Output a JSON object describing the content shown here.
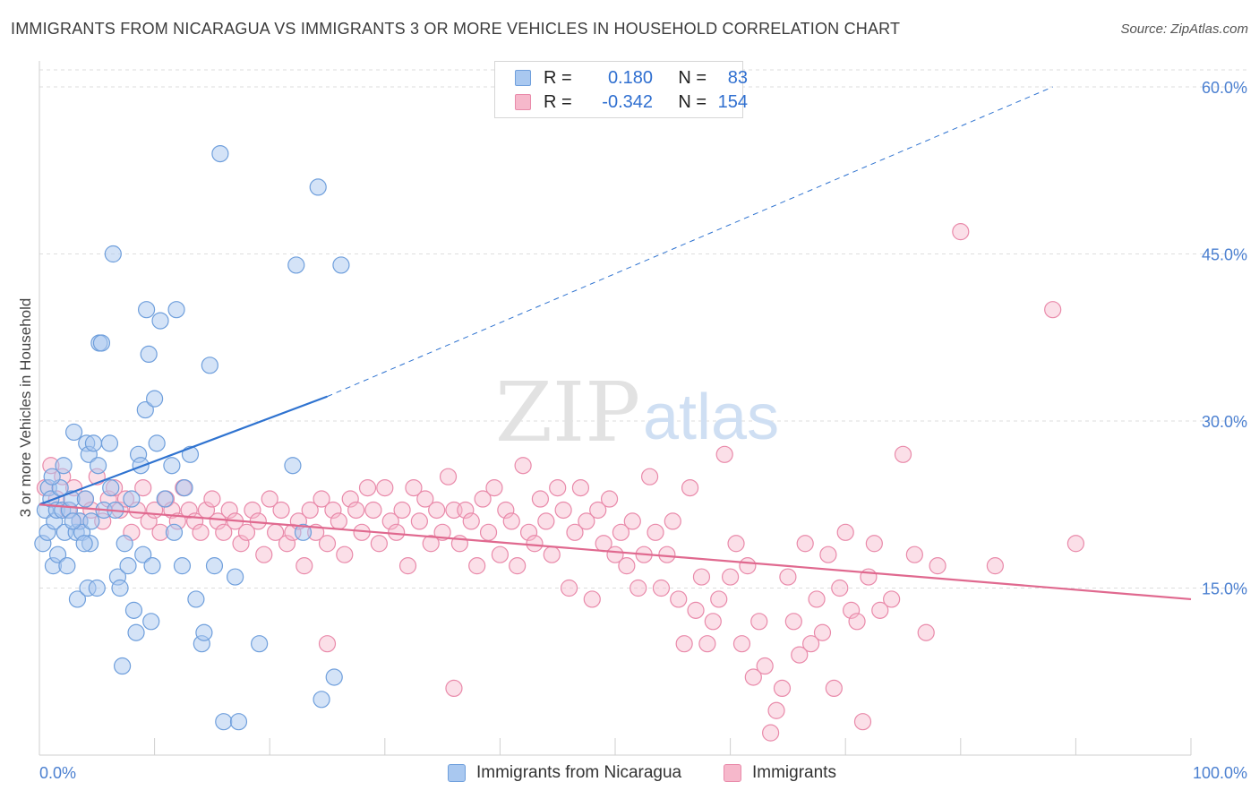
{
  "title": "IMMIGRANTS FROM NICARAGUA VS IMMIGRANTS 3 OR MORE VEHICLES IN HOUSEHOLD CORRELATION CHART",
  "source": "Source: ZipAtlas.com",
  "watermark": {
    "zip": "ZIP",
    "atlas": "atlas"
  },
  "legend": {
    "rows": [
      {
        "r_label": "R =",
        "r_value": "0.180",
        "n_label": "N =",
        "n_value": "83"
      },
      {
        "r_label": "R =",
        "r_value": "-0.342",
        "n_label": "N =",
        "n_value": "154"
      }
    ]
  },
  "colors": {
    "blue_fill": "#a9c8f0",
    "blue_stroke": "#6f9fdc",
    "blue_line": "#2f73d0",
    "pink_fill": "#f6b8cb",
    "pink_stroke": "#e98aaa",
    "pink_line": "#e0698f",
    "tick_text": "#4a7fd0",
    "grid": "#dedede"
  },
  "chart_data": {
    "type": "scatter",
    "title": "IMMIGRANTS FROM NICARAGUA VS IMMIGRANTS 3 OR MORE VEHICLES IN HOUSEHOLD CORRELATION CHART",
    "xlabel": "",
    "ylabel": "3 or more Vehicles in Household",
    "xlim": [
      0,
      100
    ],
    "ylim": [
      0,
      60
    ],
    "x_tick_labels": [
      "0.0%",
      "100.0%"
    ],
    "y_ticks": [
      15,
      30,
      45,
      60
    ],
    "y_tick_labels": [
      "15.0%",
      "30.0%",
      "45.0%",
      "60.0%"
    ],
    "grid": true,
    "legend_position": "bottom",
    "series": [
      {
        "name": "Immigrants from Nicaragua",
        "color": "#a9c8f0",
        "trend": {
          "x0": 0,
          "y0": 22.5,
          "x1": 25,
          "y1": 32.2,
          "dashed_to_x": 88,
          "dashed_to_y": 60
        },
        "points": [
          [
            0.3,
            19
          ],
          [
            0.5,
            22
          ],
          [
            0.7,
            20
          ],
          [
            0.8,
            24
          ],
          [
            1,
            23
          ],
          [
            1.2,
            17
          ],
          [
            1.3,
            21
          ],
          [
            1.5,
            22
          ],
          [
            1.6,
            18
          ],
          [
            1.8,
            24
          ],
          [
            2,
            22
          ],
          [
            2.1,
            26
          ],
          [
            2.2,
            20
          ],
          [
            2.4,
            17
          ],
          [
            2.6,
            22
          ],
          [
            2.8,
            23
          ],
          [
            3,
            29
          ],
          [
            3.2,
            20
          ],
          [
            3.3,
            14
          ],
          [
            3.5,
            21
          ],
          [
            3.7,
            20
          ],
          [
            4,
            23
          ],
          [
            4.1,
            28
          ],
          [
            4.2,
            15
          ],
          [
            4.3,
            27
          ],
          [
            4.4,
            19
          ],
          [
            4.5,
            21
          ],
          [
            4.7,
            28
          ],
          [
            5,
            15
          ],
          [
            5.1,
            26
          ],
          [
            5.2,
            37
          ],
          [
            5.4,
            37
          ],
          [
            5.6,
            22
          ],
          [
            6.1,
            28
          ],
          [
            6.2,
            24
          ],
          [
            6.4,
            45
          ],
          [
            6.8,
            16
          ],
          [
            7,
            15
          ],
          [
            7.2,
            8
          ],
          [
            7.4,
            19
          ],
          [
            7.7,
            17
          ],
          [
            8,
            23
          ],
          [
            8.2,
            13
          ],
          [
            8.4,
            11
          ],
          [
            8.6,
            27
          ],
          [
            8.8,
            26
          ],
          [
            9,
            18
          ],
          [
            9.2,
            31
          ],
          [
            9.3,
            40
          ],
          [
            9.5,
            36
          ],
          [
            9.7,
            12
          ],
          [
            9.8,
            17
          ],
          [
            10,
            32
          ],
          [
            10.2,
            28
          ],
          [
            10.5,
            39
          ],
          [
            10.9,
            23
          ],
          [
            11.5,
            26
          ],
          [
            11.7,
            20
          ],
          [
            11.9,
            40
          ],
          [
            12.4,
            17
          ],
          [
            12.6,
            24
          ],
          [
            13.1,
            27
          ],
          [
            13.6,
            14
          ],
          [
            14.1,
            10
          ],
          [
            14.3,
            11
          ],
          [
            14.8,
            35
          ],
          [
            15.2,
            17
          ],
          [
            15.7,
            54
          ],
          [
            16,
            3
          ],
          [
            17,
            16
          ],
          [
            17.3,
            3
          ],
          [
            19.1,
            10
          ],
          [
            22,
            26
          ],
          [
            22.3,
            44
          ],
          [
            22.9,
            20
          ],
          [
            24.2,
            51
          ],
          [
            24.5,
            5
          ],
          [
            25.6,
            7
          ],
          [
            26.2,
            44
          ],
          [
            1.1,
            25
          ],
          [
            2.9,
            21
          ],
          [
            3.9,
            19
          ],
          [
            6.6,
            22
          ]
        ]
      },
      {
        "name": "Immigrants",
        "color": "#f6b8cb",
        "trend": {
          "x0": 0,
          "y0": 22.5,
          "x1": 100,
          "y1": 14.0
        },
        "points": [
          [
            0.5,
            24
          ],
          [
            1,
            26
          ],
          [
            1.5,
            23
          ],
          [
            2,
            25
          ],
          [
            2.5,
            22
          ],
          [
            3,
            24
          ],
          [
            3.5,
            21
          ],
          [
            4,
            23
          ],
          [
            4.5,
            22
          ],
          [
            5,
            25
          ],
          [
            5.5,
            21
          ],
          [
            6,
            23
          ],
          [
            6.5,
            24
          ],
          [
            7,
            22
          ],
          [
            7.5,
            23
          ],
          [
            8,
            20
          ],
          [
            8.5,
            22
          ],
          [
            9,
            24
          ],
          [
            9.5,
            21
          ],
          [
            10,
            22
          ],
          [
            10.5,
            20
          ],
          [
            11,
            23
          ],
          [
            11.5,
            22
          ],
          [
            12,
            21
          ],
          [
            12.5,
            24
          ],
          [
            13,
            22
          ],
          [
            13.5,
            21
          ],
          [
            14,
            20
          ],
          [
            14.5,
            22
          ],
          [
            15,
            23
          ],
          [
            15.5,
            21
          ],
          [
            16,
            20
          ],
          [
            16.5,
            22
          ],
          [
            17,
            21
          ],
          [
            17.5,
            19
          ],
          [
            18,
            20
          ],
          [
            18.5,
            22
          ],
          [
            19,
            21
          ],
          [
            19.5,
            18
          ],
          [
            20,
            23
          ],
          [
            20.5,
            20
          ],
          [
            21,
            22
          ],
          [
            21.5,
            19
          ],
          [
            22,
            20
          ],
          [
            22.5,
            21
          ],
          [
            23,
            17
          ],
          [
            23.5,
            22
          ],
          [
            24,
            20
          ],
          [
            24.5,
            23
          ],
          [
            25,
            19
          ],
          [
            25.5,
            22
          ],
          [
            26,
            21
          ],
          [
            26.5,
            18
          ],
          [
            27,
            23
          ],
          [
            27.5,
            22
          ],
          [
            28,
            20
          ],
          [
            28.5,
            24
          ],
          [
            29,
            22
          ],
          [
            29.5,
            19
          ],
          [
            30,
            24
          ],
          [
            30.5,
            21
          ],
          [
            31,
            20
          ],
          [
            31.5,
            22
          ],
          [
            32,
            17
          ],
          [
            32.5,
            24
          ],
          [
            33,
            21
          ],
          [
            33.5,
            23
          ],
          [
            34,
            19
          ],
          [
            34.5,
            22
          ],
          [
            35,
            20
          ],
          [
            35.5,
            25
          ],
          [
            36,
            22
          ],
          [
            36.5,
            19
          ],
          [
            37,
            22
          ],
          [
            37.5,
            21
          ],
          [
            38,
            17
          ],
          [
            38.5,
            23
          ],
          [
            39,
            20
          ],
          [
            39.5,
            24
          ],
          [
            40,
            18
          ],
          [
            40.5,
            22
          ],
          [
            41,
            21
          ],
          [
            41.5,
            17
          ],
          [
            42,
            26
          ],
          [
            42.5,
            20
          ],
          [
            43,
            19
          ],
          [
            43.5,
            23
          ],
          [
            44,
            21
          ],
          [
            44.5,
            18
          ],
          [
            45,
            24
          ],
          [
            45.5,
            22
          ],
          [
            46,
            15
          ],
          [
            46.5,
            20
          ],
          [
            47,
            24
          ],
          [
            47.5,
            21
          ],
          [
            48,
            14
          ],
          [
            48.5,
            22
          ],
          [
            49,
            19
          ],
          [
            49.5,
            23
          ],
          [
            50,
            18
          ],
          [
            50.5,
            20
          ],
          [
            51,
            17
          ],
          [
            51.5,
            21
          ],
          [
            52,
            15
          ],
          [
            52.5,
            18
          ],
          [
            53,
            25
          ],
          [
            53.5,
            20
          ],
          [
            54,
            15
          ],
          [
            54.5,
            18
          ],
          [
            55,
            21
          ],
          [
            55.5,
            14
          ],
          [
            56,
            10
          ],
          [
            56.5,
            24
          ],
          [
            57,
            13
          ],
          [
            57.5,
            16
          ],
          [
            58,
            10
          ],
          [
            58.5,
            12
          ],
          [
            59,
            14
          ],
          [
            59.5,
            27
          ],
          [
            60,
            16
          ],
          [
            60.5,
            19
          ],
          [
            61,
            10
          ],
          [
            61.5,
            17
          ],
          [
            62,
            7
          ],
          [
            62.5,
            12
          ],
          [
            63,
            8
          ],
          [
            63.5,
            2
          ],
          [
            64,
            4
          ],
          [
            64.5,
            6
          ],
          [
            65,
            16
          ],
          [
            65.5,
            12
          ],
          [
            66,
            9
          ],
          [
            66.5,
            19
          ],
          [
            67,
            10
          ],
          [
            67.5,
            14
          ],
          [
            68,
            11
          ],
          [
            68.5,
            18
          ],
          [
            69,
            6
          ],
          [
            69.5,
            15
          ],
          [
            70,
            20
          ],
          [
            70.5,
            13
          ],
          [
            71,
            12
          ],
          [
            71.5,
            3
          ],
          [
            72,
            16
          ],
          [
            72.5,
            19
          ],
          [
            73,
            13
          ],
          [
            74,
            14
          ],
          [
            75,
            27
          ],
          [
            76,
            18
          ],
          [
            77,
            11
          ],
          [
            78,
            17
          ],
          [
            80,
            47
          ],
          [
            83,
            17
          ],
          [
            88,
            40
          ],
          [
            90,
            19
          ],
          [
            25,
            10
          ],
          [
            36,
            6
          ]
        ]
      }
    ]
  },
  "bottom_legend": [
    {
      "label": "Immigrants from Nicaragua"
    },
    {
      "label": "Immigrants"
    }
  ]
}
